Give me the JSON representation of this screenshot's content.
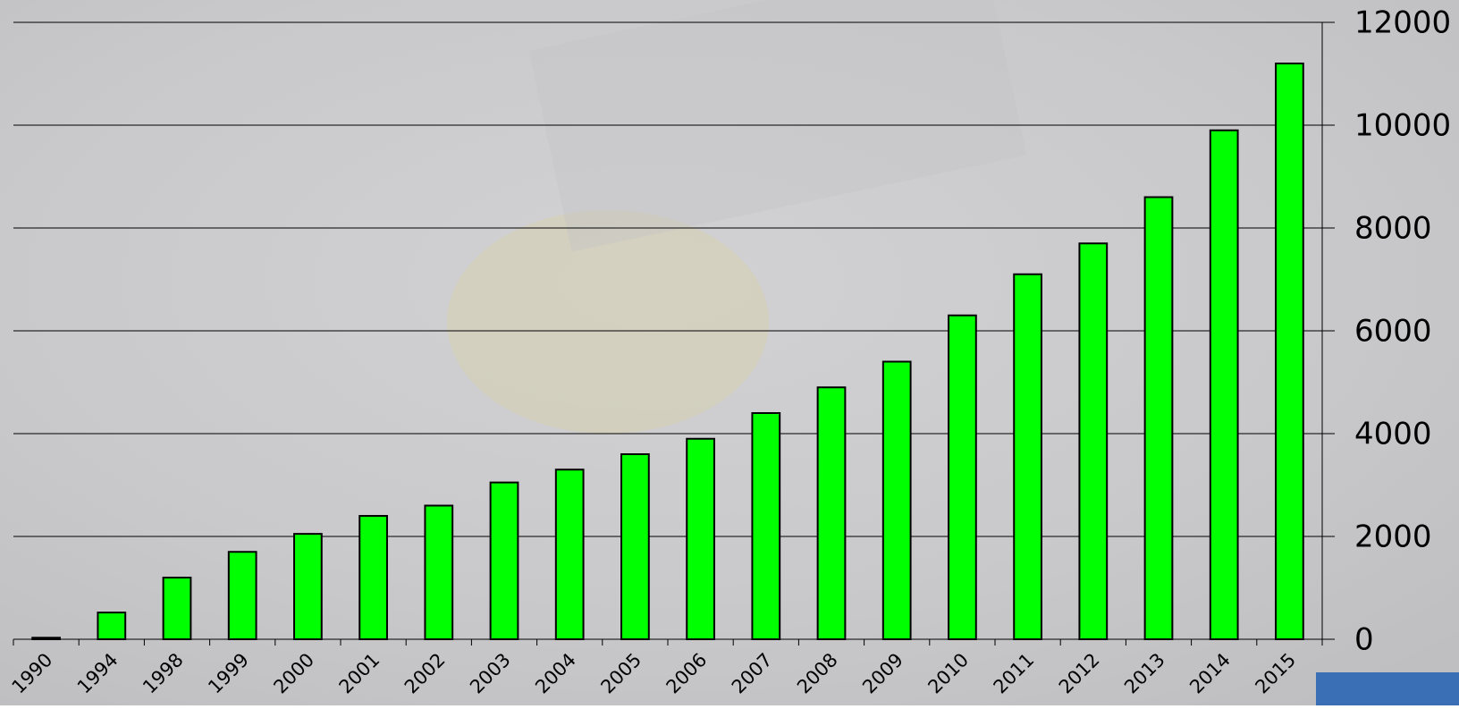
{
  "chart_data": {
    "type": "bar",
    "categories": [
      "1990",
      "1994",
      "1998",
      "1999",
      "2000",
      "2001",
      "2002",
      "2003",
      "2004",
      "2005",
      "2006",
      "2007",
      "2008",
      "2009",
      "2010",
      "2011",
      "2012",
      "2013",
      "2014",
      "2015"
    ],
    "values": [
      30,
      520,
      1200,
      1700,
      2050,
      2400,
      2600,
      3050,
      3300,
      3600,
      3900,
      4400,
      4900,
      5400,
      6300,
      7100,
      7700,
      8600,
      9900,
      11200
    ],
    "color": "#00ff00",
    "ylim": [
      0,
      12000
    ],
    "yticks": [
      0,
      2000,
      4000,
      6000,
      8000,
      10000,
      12000
    ],
    "grid": true,
    "y_axis_side": "right"
  }
}
